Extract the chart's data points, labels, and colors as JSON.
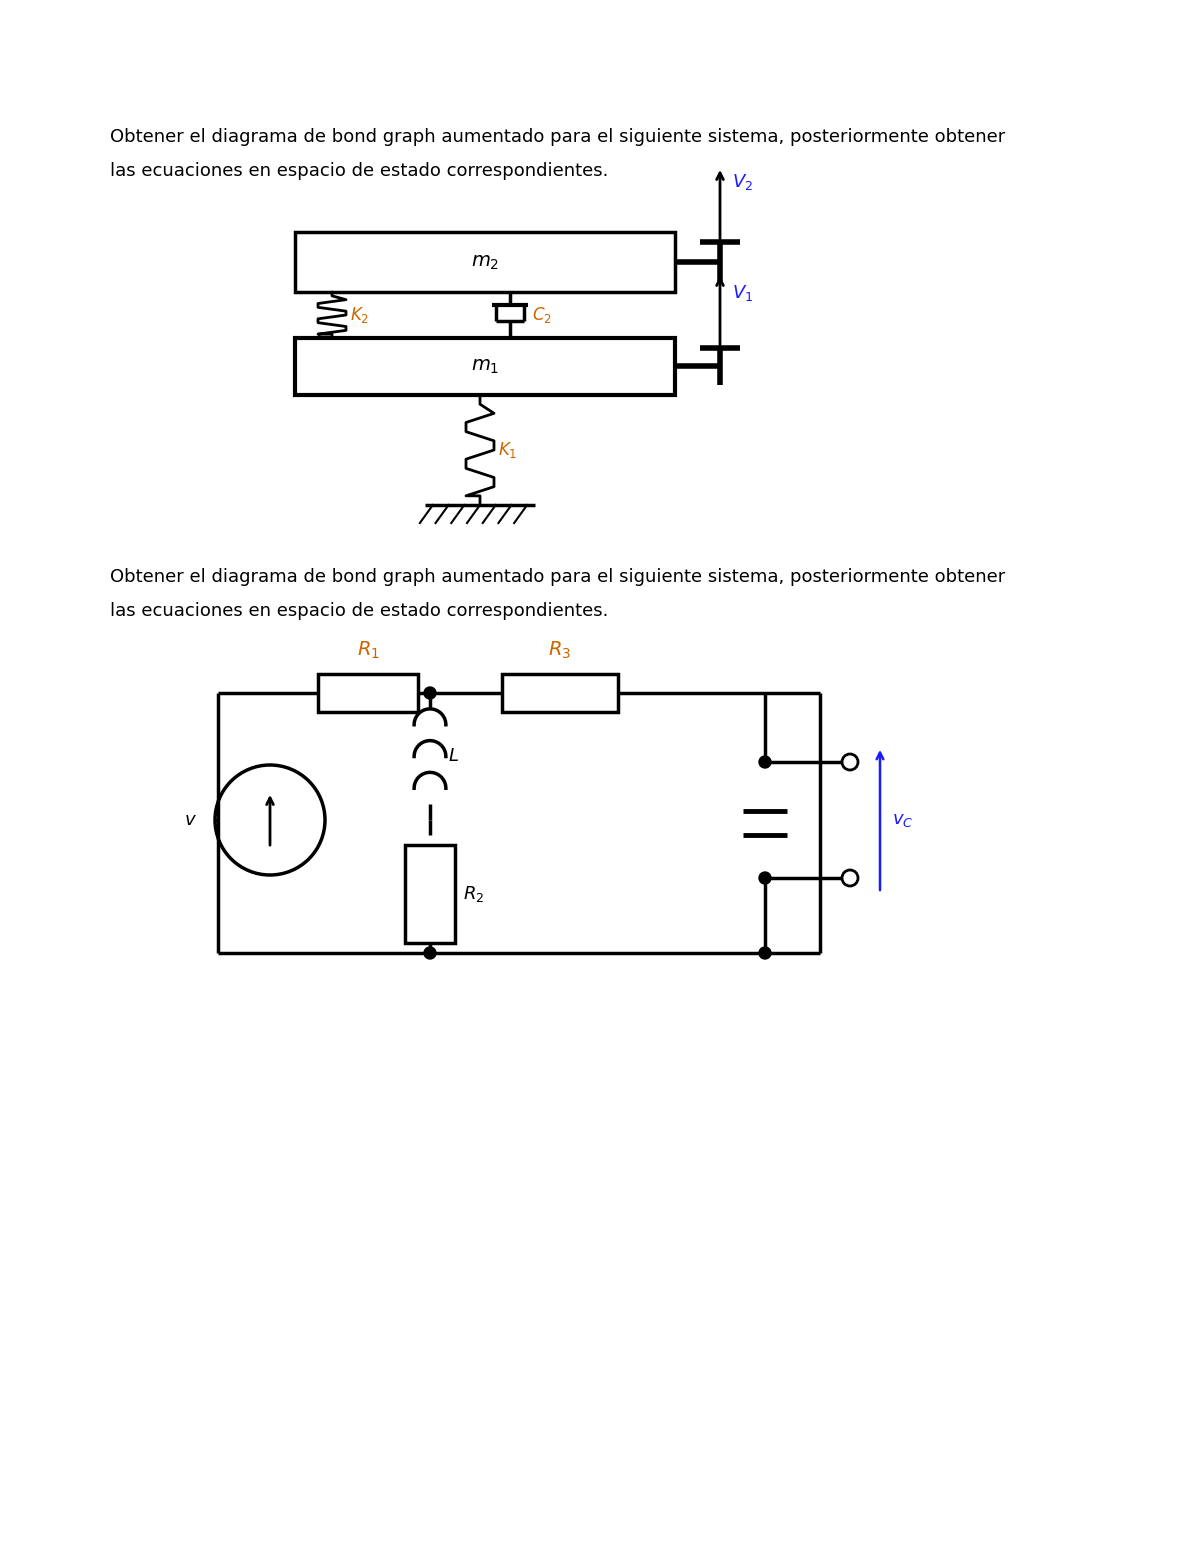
{
  "text1_line1": "Obtener el diagrama de bond graph aumentado para el siguiente sistema, posteriormente obtener",
  "text1_line2": "las ecuaciones en espacio de estado correspondientes.",
  "text2_line1": "Obtener el diagrama de bond graph aumentado para el siguiente sistema, posteriormente obtener",
  "text2_line2": "las ecuaciones en espacio de estado correspondientes.",
  "bg_color": "#ffffff",
  "text_color": "#000000",
  "label_color_orange": "#cc6600",
  "label_color_blue": "#1a1aff",
  "font_size_text": 13,
  "line_color": "#000000"
}
